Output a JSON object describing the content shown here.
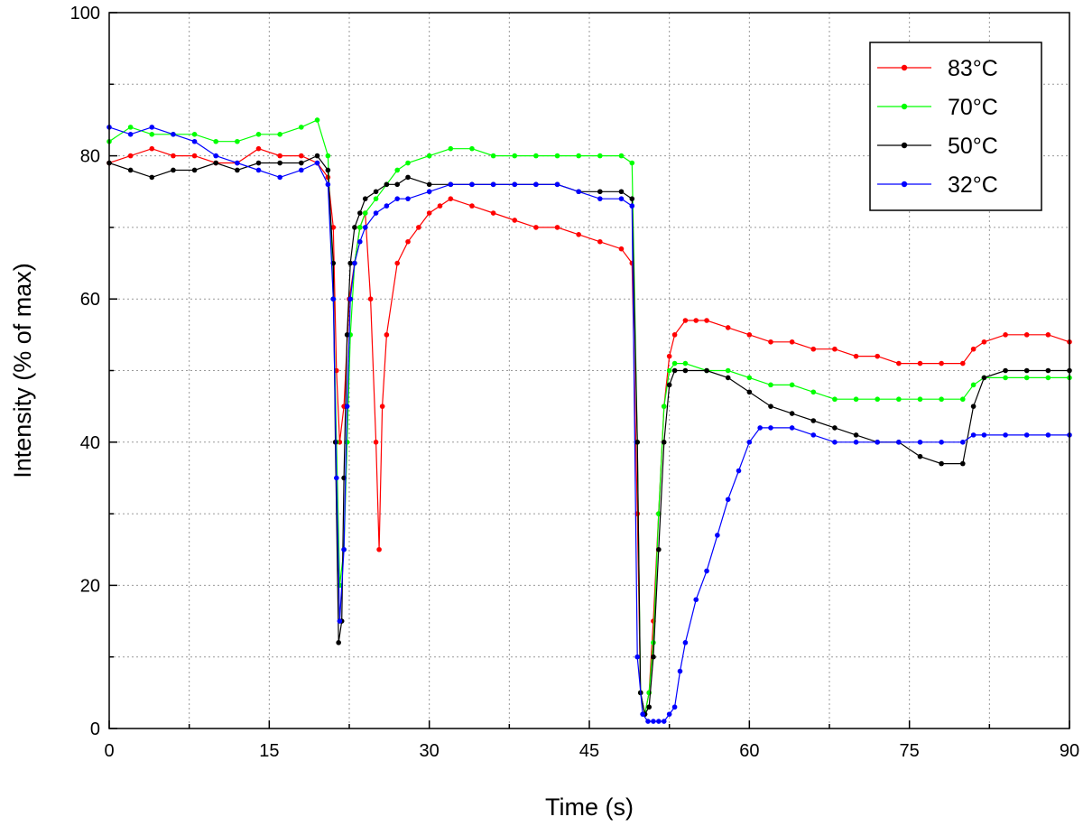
{
  "chart_data": {
    "type": "line",
    "xlabel": "Time (s)",
    "ylabel": "Intensity (% of max)",
    "xlim": [
      0,
      90
    ],
    "ylim": [
      0,
      100
    ],
    "xticks": [
      0,
      15,
      30,
      45,
      60,
      75,
      90
    ],
    "yticks": [
      0,
      20,
      40,
      60,
      80,
      100
    ],
    "grid": true,
    "legend_position": "top-right",
    "series": [
      {
        "name": "83°C",
        "color": "#ff0000",
        "x": [
          0,
          2,
          4,
          6,
          8,
          10,
          12,
          14,
          16,
          18,
          19.5,
          20.5,
          21,
          21.3,
          21.6,
          22,
          22.5,
          23,
          23.5,
          24,
          24.5,
          25,
          25.3,
          25.6,
          26,
          27,
          28,
          29,
          30,
          31,
          32,
          34,
          36,
          38,
          40,
          42,
          44,
          46,
          48,
          49,
          49.5,
          49.8,
          50.2,
          50.6,
          51,
          51.5,
          52,
          52.5,
          53,
          54,
          55,
          56,
          58,
          60,
          62,
          64,
          66,
          68,
          70,
          72,
          74,
          76,
          78,
          80,
          81,
          82,
          84,
          86,
          88,
          90
        ],
        "y": [
          79,
          80,
          81,
          80,
          80,
          79,
          79,
          81,
          80,
          80,
          79,
          77,
          70,
          50,
          40,
          45,
          60,
          65,
          70,
          72,
          60,
          40,
          25,
          45,
          55,
          65,
          68,
          70,
          72,
          73,
          74,
          73,
          72,
          71,
          70,
          70,
          69,
          68,
          67,
          65,
          30,
          5,
          2,
          5,
          15,
          30,
          45,
          52,
          55,
          57,
          57,
          57,
          56,
          55,
          54,
          54,
          53,
          53,
          52,
          52,
          51,
          51,
          51,
          51,
          53,
          54,
          55,
          55,
          55,
          54
        ]
      },
      {
        "name": "70°C",
        "color": "#00ff00",
        "x": [
          0,
          2,
          4,
          6,
          8,
          10,
          12,
          14,
          16,
          18,
          19.5,
          20.5,
          21,
          21.3,
          21.6,
          22,
          22.3,
          22.6,
          23,
          23.5,
          24,
          25,
          26,
          27,
          28,
          30,
          32,
          34,
          36,
          38,
          40,
          42,
          44,
          46,
          48,
          49,
          49.5,
          49.8,
          50.2,
          50.6,
          51,
          51.5,
          52,
          52.5,
          53,
          54,
          56,
          58,
          60,
          62,
          64,
          66,
          68,
          70,
          72,
          74,
          76,
          78,
          80,
          81,
          82,
          84,
          86,
          88,
          90
        ],
        "y": [
          82,
          84,
          83,
          83,
          83,
          82,
          82,
          83,
          83,
          84,
          85,
          80,
          60,
          40,
          20,
          25,
          40,
          55,
          65,
          70,
          72,
          74,
          76,
          78,
          79,
          80,
          81,
          81,
          80,
          80,
          80,
          80,
          80,
          80,
          80,
          79,
          40,
          5,
          2,
          5,
          12,
          30,
          45,
          50,
          51,
          51,
          50,
          50,
          49,
          48,
          48,
          47,
          46,
          46,
          46,
          46,
          46,
          46,
          46,
          48,
          49,
          49,
          49,
          49,
          49
        ]
      },
      {
        "name": "50°C",
        "color": "#000000",
        "x": [
          0,
          2,
          4,
          6,
          8,
          10,
          12,
          14,
          16,
          18,
          19.5,
          20.5,
          21,
          21.2,
          21.5,
          21.8,
          22,
          22.3,
          22.6,
          23,
          23.5,
          24,
          25,
          26,
          27,
          28,
          30,
          32,
          34,
          36,
          38,
          40,
          42,
          44,
          46,
          48,
          49,
          49.5,
          49.8,
          50.2,
          50.6,
          51,
          51.5,
          52,
          52.5,
          53,
          54,
          56,
          58,
          60,
          62,
          64,
          66,
          68,
          70,
          72,
          74,
          76,
          78,
          80,
          81,
          82,
          84,
          86,
          88,
          90
        ],
        "y": [
          79,
          78,
          77,
          78,
          78,
          79,
          78,
          79,
          79,
          79,
          80,
          78,
          65,
          40,
          12,
          15,
          35,
          55,
          65,
          70,
          72,
          74,
          75,
          76,
          76,
          77,
          76,
          76,
          76,
          76,
          76,
          76,
          76,
          75,
          75,
          75,
          74,
          40,
          5,
          2,
          3,
          10,
          25,
          40,
          48,
          50,
          50,
          50,
          49,
          47,
          45,
          44,
          43,
          42,
          41,
          40,
          40,
          38,
          37,
          37,
          45,
          49,
          50,
          50,
          50,
          50
        ]
      },
      {
        "name": "32°C",
        "color": "#0000ff",
        "x": [
          0,
          2,
          4,
          6,
          8,
          10,
          12,
          14,
          16,
          18,
          19.5,
          20.5,
          21,
          21.3,
          21.6,
          22,
          22.3,
          22.6,
          23,
          23.5,
          24,
          25,
          26,
          27,
          28,
          30,
          32,
          34,
          36,
          38,
          40,
          42,
          44,
          46,
          48,
          49,
          49.5,
          50,
          50.5,
          51,
          51.5,
          52,
          52.5,
          53,
          53.5,
          54,
          55,
          56,
          57,
          58,
          59,
          60,
          61,
          62,
          64,
          66,
          68,
          70,
          72,
          74,
          76,
          78,
          80,
          81,
          82,
          84,
          86,
          88,
          90
        ],
        "y": [
          84,
          83,
          84,
          83,
          82,
          80,
          79,
          78,
          77,
          78,
          79,
          76,
          60,
          35,
          15,
          25,
          45,
          60,
          65,
          68,
          70,
          72,
          73,
          74,
          74,
          75,
          76,
          76,
          76,
          76,
          76,
          76,
          75,
          74,
          74,
          73,
          10,
          2,
          1,
          1,
          1,
          1,
          2,
          3,
          8,
          12,
          18,
          22,
          27,
          32,
          36,
          40,
          42,
          42,
          42,
          41,
          40,
          40,
          40,
          40,
          40,
          40,
          40,
          41,
          41,
          41,
          41,
          41,
          41
        ]
      }
    ]
  }
}
